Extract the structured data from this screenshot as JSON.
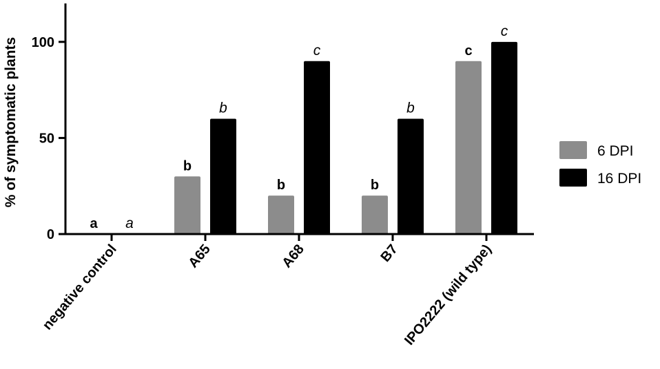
{
  "chart_data": {
    "type": "bar",
    "ylabel": "% of symptomatic plants",
    "ylim": [
      0,
      120
    ],
    "yticks": [
      0,
      50,
      100
    ],
    "categories": [
      "negative control",
      "A65",
      "A68",
      "B7",
      "IPO2222 (wild type)"
    ],
    "series": [
      {
        "name": "6 DPI",
        "color": "#8c8c8c",
        "values": [
          0,
          30,
          20,
          20,
          90
        ],
        "letters": [
          "a",
          "b",
          "b",
          "b",
          "c"
        ],
        "letter_style": "bold"
      },
      {
        "name": "16 DPI",
        "color": "#000000",
        "values": [
          0,
          60,
          90,
          60,
          100
        ],
        "letters": [
          "a",
          "b",
          "c",
          "b",
          "c"
        ],
        "letter_style": "italic"
      }
    ],
    "legend_position": "right"
  }
}
